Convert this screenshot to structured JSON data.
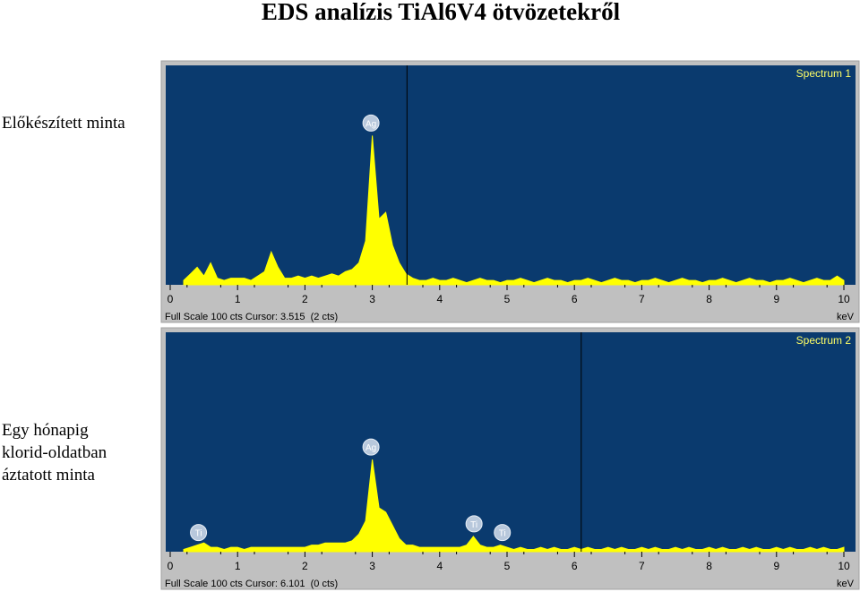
{
  "title": "EDS analízis TiAl6V4 ötvözetekről",
  "chart_data": [
    {
      "type": "area",
      "title": "Spectrum 1",
      "caption": [
        "Előkészített minta"
      ],
      "footer": "Full Scale 100 cts Cursor: 3.515  (2 cts)",
      "xlabel": "keV",
      "xlim": [
        0,
        10
      ],
      "ylim": [
        0,
        100
      ],
      "xticks": [
        0,
        1,
        2,
        3,
        4,
        5,
        6,
        7,
        8,
        9,
        10
      ],
      "cursor": 3.515,
      "color": "#ffff00",
      "x": [
        0.2,
        0.3,
        0.4,
        0.5,
        0.6,
        0.7,
        0.8,
        0.9,
        1.0,
        1.1,
        1.2,
        1.3,
        1.4,
        1.5,
        1.6,
        1.7,
        1.8,
        1.9,
        2.0,
        2.1,
        2.2,
        2.3,
        2.4,
        2.5,
        2.6,
        2.7,
        2.8,
        2.9,
        3.0,
        3.1,
        3.2,
        3.3,
        3.4,
        3.5,
        3.6,
        3.7,
        3.8,
        3.9,
        4.0,
        4.1,
        4.2,
        4.3,
        4.4,
        4.5,
        4.6,
        4.7,
        4.8,
        4.9,
        5.0,
        5.1,
        5.2,
        5.3,
        5.4,
        5.5,
        5.6,
        5.7,
        5.8,
        5.9,
        6.0,
        6.1,
        6.2,
        6.3,
        6.4,
        6.5,
        6.6,
        6.7,
        6.8,
        6.9,
        7.0,
        7.1,
        7.2,
        7.3,
        7.4,
        7.5,
        7.6,
        7.7,
        7.8,
        7.9,
        8.0,
        8.1,
        8.2,
        8.3,
        8.4,
        8.5,
        8.6,
        8.7,
        8.8,
        8.9,
        9.0,
        9.1,
        9.2,
        9.3,
        9.4,
        9.5,
        9.6,
        9.7,
        9.8,
        9.9,
        10.0
      ],
      "values": [
        2,
        5,
        8,
        4,
        10,
        3,
        2,
        3,
        3,
        3,
        2,
        4,
        6,
        15,
        8,
        3,
        3,
        4,
        3,
        4,
        3,
        4,
        5,
        4,
        6,
        7,
        10,
        20,
        68,
        30,
        33,
        18,
        10,
        5,
        3,
        2,
        2,
        3,
        2,
        2,
        3,
        2,
        1,
        2,
        3,
        2,
        2,
        1,
        2,
        2,
        3,
        2,
        1,
        2,
        3,
        2,
        2,
        1,
        2,
        2,
        3,
        2,
        1,
        2,
        3,
        2,
        2,
        1,
        2,
        2,
        3,
        2,
        1,
        2,
        3,
        2,
        2,
        1,
        2,
        2,
        3,
        2,
        1,
        2,
        3,
        2,
        2,
        1,
        2,
        2,
        3,
        2,
        1,
        2,
        3,
        2,
        2,
        4,
        2
      ],
      "annotations": [
        {
          "label": "Ag",
          "x": 2.98
        }
      ]
    },
    {
      "type": "area",
      "title": "Spectrum 2",
      "caption": [
        "Egy hónapig",
        "klorid-oldatban",
        "áztatott minta"
      ],
      "footer": "Full Scale 100 cts Cursor: 6.101  (0 cts)",
      "xlabel": "keV",
      "xlim": [
        0,
        10
      ],
      "ylim": [
        0,
        100
      ],
      "xticks": [
        0,
        1,
        2,
        3,
        4,
        5,
        6,
        7,
        8,
        9,
        10
      ],
      "cursor": 6.101,
      "color": "#ffff00",
      "x": [
        0.2,
        0.3,
        0.4,
        0.5,
        0.6,
        0.7,
        0.8,
        0.9,
        1.0,
        1.1,
        1.2,
        1.3,
        1.4,
        1.5,
        1.6,
        1.7,
        1.8,
        1.9,
        2.0,
        2.1,
        2.2,
        2.3,
        2.4,
        2.5,
        2.6,
        2.7,
        2.8,
        2.9,
        3.0,
        3.1,
        3.2,
        3.3,
        3.4,
        3.5,
        3.6,
        3.7,
        3.8,
        3.9,
        4.0,
        4.1,
        4.2,
        4.3,
        4.4,
        4.5,
        4.6,
        4.7,
        4.8,
        4.9,
        5.0,
        5.1,
        5.2,
        5.3,
        5.4,
        5.5,
        5.6,
        5.7,
        5.8,
        5.9,
        6.0,
        6.1,
        6.2,
        6.3,
        6.4,
        6.5,
        6.6,
        6.7,
        6.8,
        6.9,
        7.0,
        7.1,
        7.2,
        7.3,
        7.4,
        7.5,
        7.6,
        7.7,
        7.8,
        7.9,
        8.0,
        8.1,
        8.2,
        8.3,
        8.4,
        8.5,
        8.6,
        8.7,
        8.8,
        8.9,
        9.0,
        9.1,
        9.2,
        9.3,
        9.4,
        9.5,
        9.6,
        9.7,
        9.8,
        9.9,
        10.0
      ],
      "values": [
        1,
        2,
        3,
        4,
        2,
        2,
        1,
        2,
        2,
        1,
        2,
        2,
        2,
        2,
        2,
        2,
        2,
        2,
        2,
        3,
        3,
        4,
        4,
        4,
        4,
        5,
        8,
        14,
        42,
        20,
        18,
        12,
        6,
        3,
        3,
        2,
        2,
        2,
        2,
        2,
        2,
        2,
        3,
        7,
        3,
        2,
        2,
        3,
        2,
        1,
        2,
        1,
        1,
        2,
        1,
        2,
        1,
        1,
        2,
        1,
        2,
        1,
        1,
        2,
        1,
        2,
        1,
        1,
        2,
        1,
        2,
        1,
        1,
        2,
        1,
        2,
        1,
        1,
        2,
        1,
        2,
        1,
        1,
        2,
        1,
        2,
        1,
        1,
        2,
        1,
        2,
        1,
        1,
        2,
        1,
        2,
        1,
        1,
        2
      ],
      "annotations": [
        {
          "label": "Ti",
          "x": 0.42
        },
        {
          "label": "Ag",
          "x": 2.98
        },
        {
          "label": "Ti",
          "x": 4.51
        },
        {
          "label": "Ti",
          "x": 4.93
        }
      ]
    }
  ]
}
